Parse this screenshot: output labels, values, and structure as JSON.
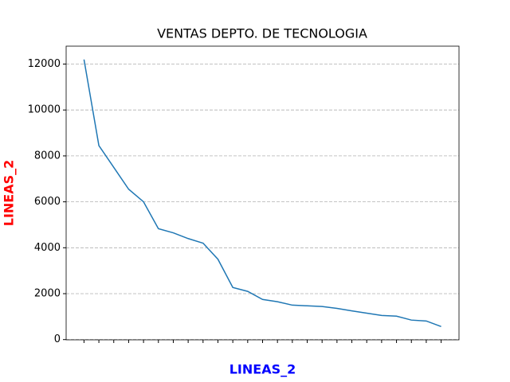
{
  "chart_data": {
    "type": "line",
    "title": "VENTAS DEPTO. DE TECNOLOGIA",
    "x_label": "LINEAS_2",
    "y_label": "LINEAS_2",
    "x_label_color": "#0000ff",
    "y_label_color": "#ff0000",
    "categories": [
      null,
      null,
      null,
      null,
      null,
      null,
      null,
      null,
      null,
      null,
      null,
      null,
      null,
      null,
      null,
      null,
      null,
      null,
      null,
      null,
      null,
      null,
      null,
      null,
      null
    ],
    "series": [
      {
        "name": "LINEAS_2",
        "color": "#1f77b4",
        "values": [
          12200,
          8450,
          7500,
          6550,
          6000,
          4830,
          4650,
          4400,
          4200,
          3500,
          2270,
          2100,
          1750,
          1650,
          1500,
          1470,
          1440,
          1360,
          1250,
          1150,
          1050,
          1020,
          850,
          810,
          570
        ]
      }
    ],
    "ylim": [
      -10,
      12780
    ],
    "yticks": [
      0,
      2000,
      4000,
      6000,
      8000,
      10000,
      12000
    ],
    "grid": true
  }
}
